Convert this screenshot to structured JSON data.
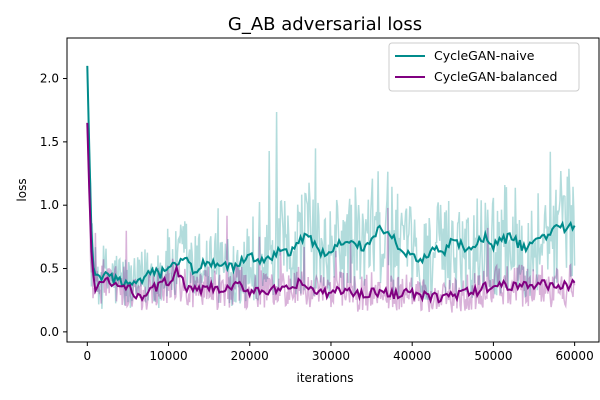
{
  "chart_data": {
    "type": "line",
    "title": "G_AB adversarial loss",
    "xlabel": "iterations",
    "ylabel": "loss",
    "xlim": [
      -2500,
      63000
    ],
    "ylim": [
      -0.08,
      2.32
    ],
    "xticks": [
      0,
      10000,
      20000,
      30000,
      40000,
      50000,
      60000
    ],
    "xtick_labels": [
      "0",
      "10000",
      "20000",
      "30000",
      "40000",
      "50000",
      "60000"
    ],
    "yticks": [
      0.0,
      0.5,
      1.0,
      1.5,
      2.0
    ],
    "ytick_labels": [
      "0.0",
      "0.5",
      "1.0",
      "1.5",
      "2.0"
    ],
    "grid": false,
    "legend_position": "top-right",
    "series": [
      {
        "name": "CycleGAN-naive",
        "color": "#008b8b",
        "raw_alpha": 0.3,
        "smoothed": [
          [
            0,
            2.1
          ],
          [
            300,
            1.3
          ],
          [
            600,
            0.55
          ],
          [
            1000,
            0.42
          ],
          [
            2000,
            0.44
          ],
          [
            3000,
            0.42
          ],
          [
            4000,
            0.41
          ],
          [
            5000,
            0.38
          ],
          [
            6000,
            0.36
          ],
          [
            7000,
            0.42
          ],
          [
            8000,
            0.47
          ],
          [
            9000,
            0.45
          ],
          [
            10000,
            0.52
          ],
          [
            11000,
            0.5
          ],
          [
            12000,
            0.6
          ],
          [
            13000,
            0.48
          ],
          [
            14000,
            0.52
          ],
          [
            15000,
            0.55
          ],
          [
            16000,
            0.5
          ],
          [
            17000,
            0.52
          ],
          [
            18000,
            0.5
          ],
          [
            19000,
            0.55
          ],
          [
            20000,
            0.6
          ],
          [
            21000,
            0.58
          ],
          [
            22000,
            0.55
          ],
          [
            23000,
            0.6
          ],
          [
            24000,
            0.66
          ],
          [
            25000,
            0.63
          ],
          [
            26000,
            0.7
          ],
          [
            27000,
            0.78
          ],
          [
            28000,
            0.68
          ],
          [
            29000,
            0.62
          ],
          [
            30000,
            0.62
          ],
          [
            31000,
            0.7
          ],
          [
            32000,
            0.68
          ],
          [
            33000,
            0.72
          ],
          [
            34000,
            0.65
          ],
          [
            35000,
            0.75
          ],
          [
            36000,
            0.82
          ],
          [
            37000,
            0.8
          ],
          [
            38000,
            0.7
          ],
          [
            39000,
            0.62
          ],
          [
            40000,
            0.62
          ],
          [
            41000,
            0.55
          ],
          [
            42000,
            0.6
          ],
          [
            43000,
            0.66
          ],
          [
            44000,
            0.62
          ],
          [
            45000,
            0.72
          ],
          [
            46000,
            0.68
          ],
          [
            47000,
            0.65
          ],
          [
            48000,
            0.7
          ],
          [
            49000,
            0.74
          ],
          [
            50000,
            0.68
          ],
          [
            51000,
            0.72
          ],
          [
            52000,
            0.75
          ],
          [
            53000,
            0.7
          ],
          [
            54000,
            0.65
          ],
          [
            55000,
            0.72
          ],
          [
            56000,
            0.74
          ],
          [
            57000,
            0.78
          ],
          [
            58000,
            0.85
          ],
          [
            59000,
            0.82
          ],
          [
            60000,
            0.82
          ]
        ]
      },
      {
        "name": "CycleGAN-balanced",
        "color": "#800080",
        "raw_alpha": 0.3,
        "smoothed": [
          [
            0,
            1.65
          ],
          [
            300,
            1.0
          ],
          [
            600,
            0.45
          ],
          [
            1000,
            0.36
          ],
          [
            2000,
            0.4
          ],
          [
            3000,
            0.38
          ],
          [
            4000,
            0.36
          ],
          [
            5000,
            0.34
          ],
          [
            6000,
            0.3
          ],
          [
            7000,
            0.29
          ],
          [
            8000,
            0.33
          ],
          [
            9000,
            0.38
          ],
          [
            10000,
            0.4
          ],
          [
            11000,
            0.48
          ],
          [
            12000,
            0.36
          ],
          [
            13000,
            0.32
          ],
          [
            14000,
            0.33
          ],
          [
            15000,
            0.35
          ],
          [
            16000,
            0.33
          ],
          [
            17000,
            0.32
          ],
          [
            18000,
            0.36
          ],
          [
            19000,
            0.36
          ],
          [
            20000,
            0.32
          ],
          [
            21000,
            0.34
          ],
          [
            22000,
            0.32
          ],
          [
            23000,
            0.33
          ],
          [
            24000,
            0.32
          ],
          [
            25000,
            0.34
          ],
          [
            26000,
            0.38
          ],
          [
            27000,
            0.36
          ],
          [
            28000,
            0.32
          ],
          [
            29000,
            0.3
          ],
          [
            30000,
            0.3
          ],
          [
            31000,
            0.34
          ],
          [
            32000,
            0.32
          ],
          [
            33000,
            0.3
          ],
          [
            34000,
            0.3
          ],
          [
            35000,
            0.32
          ],
          [
            36000,
            0.31
          ],
          [
            37000,
            0.3
          ],
          [
            38000,
            0.3
          ],
          [
            39000,
            0.32
          ],
          [
            40000,
            0.3
          ],
          [
            41000,
            0.28
          ],
          [
            42000,
            0.28
          ],
          [
            43000,
            0.27
          ],
          [
            44000,
            0.28
          ],
          [
            45000,
            0.29
          ],
          [
            46000,
            0.3
          ],
          [
            47000,
            0.31
          ],
          [
            48000,
            0.32
          ],
          [
            49000,
            0.35
          ],
          [
            50000,
            0.36
          ],
          [
            51000,
            0.37
          ],
          [
            52000,
            0.35
          ],
          [
            53000,
            0.38
          ],
          [
            54000,
            0.37
          ],
          [
            55000,
            0.36
          ],
          [
            56000,
            0.38
          ],
          [
            57000,
            0.37
          ],
          [
            58000,
            0.36
          ],
          [
            59000,
            0.37
          ],
          [
            60000,
            0.37
          ]
        ]
      }
    ]
  }
}
